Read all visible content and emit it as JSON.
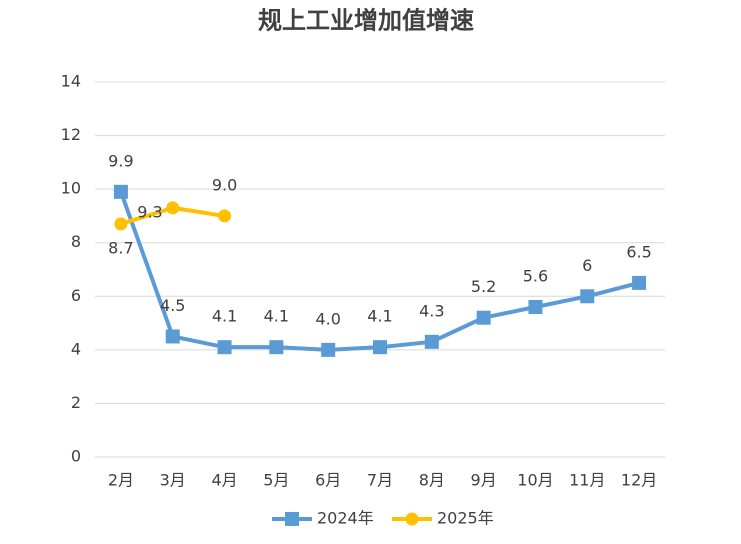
{
  "chart_data": {
    "type": "line",
    "title": "规上工业增加值增速",
    "categories": [
      "2月",
      "3月",
      "4月",
      "5月",
      "6月",
      "7月",
      "8月",
      "9月",
      "10月",
      "11月",
      "12月"
    ],
    "series": [
      {
        "name": "2024年",
        "color": "#5b9bd5",
        "marker": "square",
        "values": [
          9.9,
          4.5,
          4.1,
          4.1,
          4.0,
          4.1,
          4.3,
          5.2,
          5.6,
          6,
          6.5
        ],
        "value_labels": [
          "9.9",
          "4.5",
          "4.1",
          "4.1",
          "4.0",
          "4.1",
          "4.3",
          "5.2",
          "5.6",
          "6",
          "6.5"
        ]
      },
      {
        "name": "2025年",
        "color": "#ffc000",
        "marker": "circle",
        "values": [
          8.7,
          9.3,
          9.0,
          null,
          null,
          null,
          null,
          null,
          null,
          null,
          null
        ],
        "value_labels": [
          "8.7",
          "9.3",
          "9.0",
          null,
          null,
          null,
          null,
          null,
          null,
          null,
          null
        ]
      }
    ],
    "ylim": [
      0,
      14
    ],
    "yticks": [
      0,
      2,
      4,
      6,
      8,
      10,
      12,
      14
    ],
    "grid": true,
    "legend": "bottom"
  }
}
